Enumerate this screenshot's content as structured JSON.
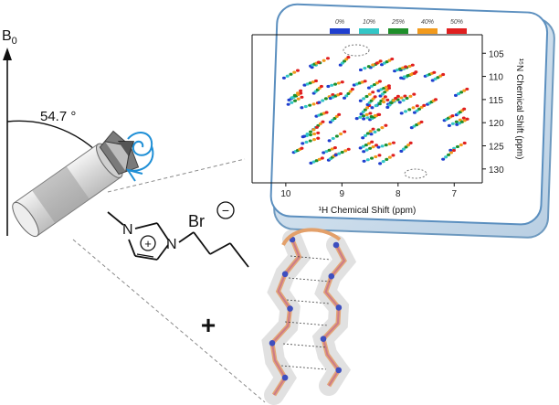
{
  "field": {
    "b0_symbol": "B",
    "b0_subscript": "0",
    "angle_label": "54.7 °"
  },
  "spectrum": {
    "legend": [
      {
        "label": "0%",
        "color": "#1f3fcf"
      },
      {
        "label": "10%",
        "color": "#33c6c6"
      },
      {
        "label": "25%",
        "color": "#1e8f2a"
      },
      {
        "label": "40%",
        "color": "#f29a1c"
      },
      {
        "label": "50%",
        "color": "#e01f1f"
      }
    ],
    "x_axis_label": "¹H Chemical Shift (ppm)",
    "y_axis_label": "¹⁵N Chemical Shift (ppm)",
    "x_ticks": [
      "10",
      "9",
      "8",
      "7"
    ],
    "y_ticks": [
      "105",
      "110",
      "115",
      "120",
      "125",
      "130"
    ]
  },
  "molecule": {
    "bromide_label": "Br",
    "anion_charge": "−",
    "cation_charge": "+",
    "n1_label": "N",
    "n3_label": "N"
  },
  "mixing": {
    "plus_sign": "+"
  }
}
